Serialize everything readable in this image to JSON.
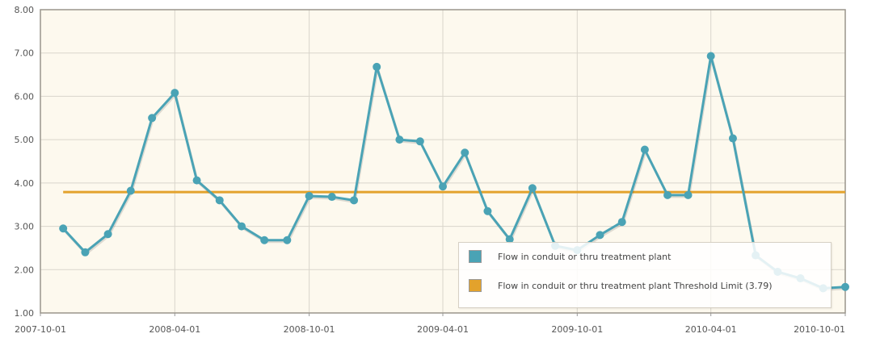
{
  "chart_data": {
    "type": "line",
    "ylim": [
      1.0,
      8.0
    ],
    "y_ticks": [
      "1.00",
      "2.00",
      "3.00",
      "4.00",
      "5.00",
      "6.00",
      "7.00",
      "8.00"
    ],
    "x_ticks": [
      "2007-10-01",
      "2008-04-01",
      "2008-10-01",
      "2009-04-01",
      "2009-10-01",
      "2010-04-01",
      "2010-10-01"
    ],
    "xlim": [
      "2007-10-01",
      "2010-10-01"
    ],
    "grid": true,
    "legend_position": "bottom-right",
    "series": [
      {
        "name": "Flow in conduit or thru treatment plant",
        "color": "#4aa3b5",
        "points": [
          [
            "2007-11-01",
            2.95
          ],
          [
            "2007-12-01",
            2.4
          ],
          [
            "2008-01-01",
            2.82
          ],
          [
            "2008-02-01",
            3.82
          ],
          [
            "2008-03-01",
            5.5
          ],
          [
            "2008-04-01",
            6.08
          ],
          [
            "2008-05-01",
            4.06
          ],
          [
            "2008-06-01",
            3.6
          ],
          [
            "2008-07-01",
            3.0
          ],
          [
            "2008-08-01",
            2.68
          ],
          [
            "2008-09-01",
            2.68
          ],
          [
            "2008-10-01",
            3.7
          ],
          [
            "2008-11-01",
            3.68
          ],
          [
            "2008-12-01",
            3.6
          ],
          [
            "2009-01-01",
            6.68
          ],
          [
            "2009-02-01",
            5.0
          ],
          [
            "2009-03-01",
            4.96
          ],
          [
            "2009-04-01",
            3.92
          ],
          [
            "2009-05-01",
            4.7
          ],
          [
            "2009-06-01",
            3.35
          ],
          [
            "2009-07-01",
            2.7
          ],
          [
            "2009-08-01",
            3.88
          ],
          [
            "2009-09-01",
            2.55
          ],
          [
            "2009-10-01",
            2.45
          ],
          [
            "2009-11-01",
            2.8
          ],
          [
            "2009-12-01",
            3.1
          ],
          [
            "2010-01-01",
            4.77
          ],
          [
            "2010-02-01",
            3.72
          ],
          [
            "2010-03-01",
            3.72
          ],
          [
            "2010-04-01",
            6.93
          ],
          [
            "2010-05-01",
            5.03
          ],
          [
            "2010-06-01",
            2.33
          ],
          [
            "2010-07-01",
            1.95
          ],
          [
            "2010-08-01",
            1.8
          ],
          [
            "2010-09-01",
            1.57
          ],
          [
            "2010-10-01",
            1.6
          ]
        ]
      },
      {
        "name": "Flow in conduit or thru treatment plant Threshold Limit (3.79)",
        "color": "#e3a22c",
        "constant": 3.79,
        "from": "2007-11-01",
        "to": "2010-10-01"
      }
    ]
  }
}
